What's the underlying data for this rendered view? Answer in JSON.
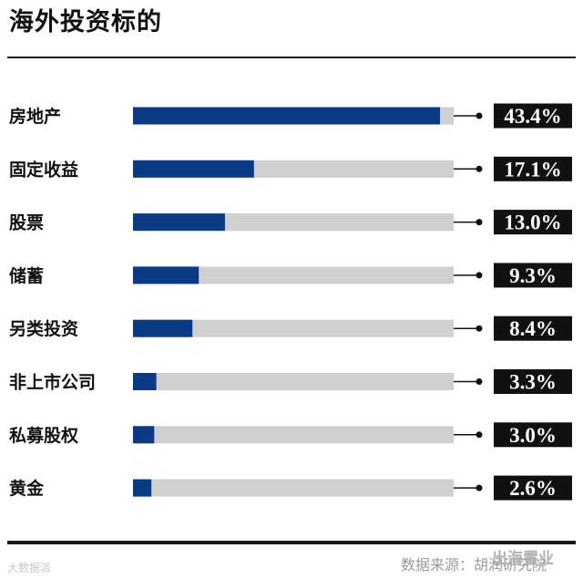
{
  "title": "海外投资标的",
  "colors": {
    "bar_fill": "#0b3b84",
    "bar_track": "#cfcfcf",
    "label_bg": "#111111",
    "label_text": "#ffffff"
  },
  "chart_data": {
    "type": "bar",
    "orientation": "horizontal",
    "title": "海外投资标的",
    "categories": [
      "房地产",
      "固定收益",
      "股票",
      "储蓄",
      "另类投资",
      "非上市公司",
      "私募股权",
      "黄金"
    ],
    "values": [
      43.4,
      17.1,
      13.0,
      9.3,
      8.4,
      3.3,
      3.0,
      2.6
    ],
    "value_labels": [
      "43.4%",
      "17.1%",
      "13.0%",
      "9.3%",
      "8.4%",
      "3.3%",
      "3.0%",
      "2.6%"
    ],
    "unit": "%",
    "xlim": [
      0,
      43.4
    ],
    "grid": false,
    "legend": "none"
  },
  "footer": {
    "source": "数据来源：胡润研究院",
    "watermark_left": "大数据派",
    "watermark_right": "出海置业"
  }
}
